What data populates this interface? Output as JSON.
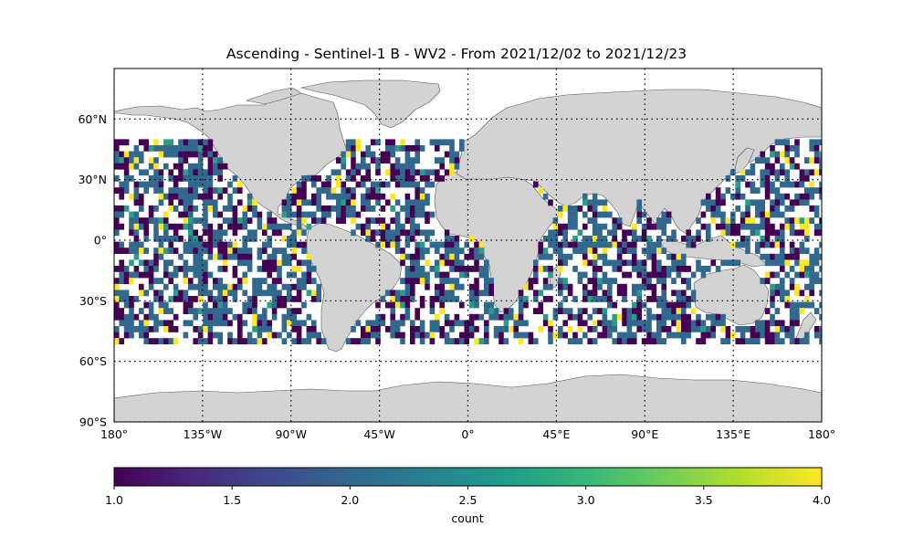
{
  "title": "Ascending - Sentinel-1 B - WV2 - From 2021/12/02 to 2021/12/23",
  "map": {
    "projection": "PlateCarree",
    "lon_range": [
      -180,
      180
    ],
    "lat_range": [
      -90,
      85
    ],
    "land_color": "#d3d3d3",
    "coastline_color": "#555555",
    "gridlines": "dotted",
    "data_lat_range": [
      -50,
      50
    ]
  },
  "lat_ticks": [
    {
      "value": 60,
      "label": "60°N"
    },
    {
      "value": 30,
      "label": "30°N"
    },
    {
      "value": 0,
      "label": "0°"
    },
    {
      "value": -30,
      "label": "30°S"
    },
    {
      "value": -60,
      "label": "60°S"
    },
    {
      "value": -90,
      "label": "90°S"
    }
  ],
  "lon_ticks": [
    {
      "value": -180,
      "label": "180°"
    },
    {
      "value": -135,
      "label": "135°W"
    },
    {
      "value": -90,
      "label": "90°W"
    },
    {
      "value": -45,
      "label": "45°W"
    },
    {
      "value": 0,
      "label": "0°"
    },
    {
      "value": 45,
      "label": "45°E"
    },
    {
      "value": 90,
      "label": "90°E"
    },
    {
      "value": 135,
      "label": "135°E"
    },
    {
      "value": 180,
      "label": "180°"
    }
  ],
  "colorbar": {
    "label": "count",
    "colormap": "viridis",
    "min": 1.0,
    "max": 4.0,
    "ticks": [
      "1.0",
      "1.5",
      "2.0",
      "2.5",
      "3.0",
      "3.5",
      "4.0"
    ],
    "colors": [
      "#440154",
      "#482878",
      "#3e4989",
      "#31688e",
      "#26828e",
      "#1f9e89",
      "#35b779",
      "#6ece58",
      "#b5de2b",
      "#fde725"
    ]
  }
}
